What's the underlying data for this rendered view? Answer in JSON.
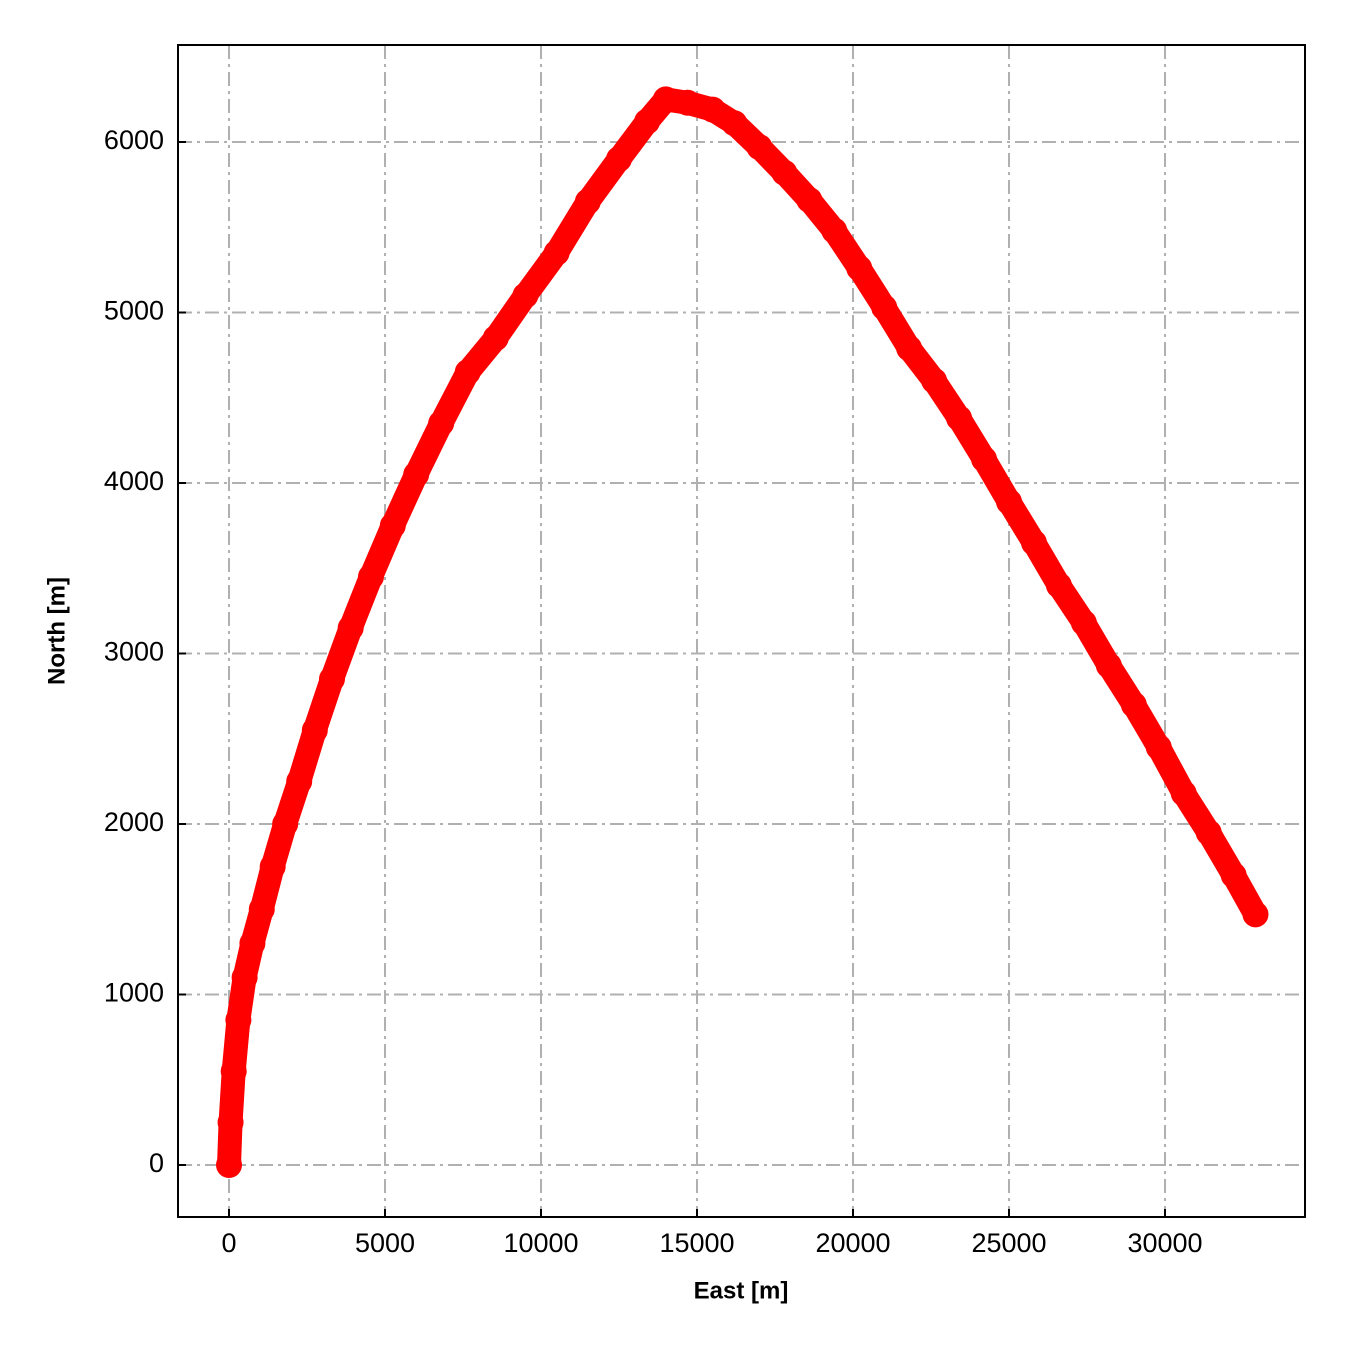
{
  "chart_data": {
    "type": "scatter",
    "xlabel": "East [m]",
    "ylabel": "North [m]",
    "xlim": [
      -1635,
      34487
    ],
    "ylim": [
      -305,
      6569
    ],
    "xticks": [
      0,
      5000,
      10000,
      15000,
      20000,
      25000,
      30000
    ],
    "yticks": [
      0,
      1000,
      2000,
      3000,
      4000,
      5000,
      6000
    ],
    "grid": true,
    "color": "#ff0000",
    "x": [
      0,
      50,
      150,
      300,
      500,
      750,
      1050,
      1400,
      1800,
      2250,
      2750,
      3300,
      3900,
      4550,
      5250,
      6000,
      6800,
      7650,
      8550,
      9500,
      10500,
      11500,
      12500,
      13400,
      14000,
      14700,
      15500,
      16200,
      17000,
      17800,
      18600,
      19400,
      20200,
      21000,
      21800,
      22600,
      23400,
      24200,
      25000,
      25800,
      26600,
      27400,
      28200,
      29000,
      29800,
      30600,
      31400,
      32200,
      32900
    ],
    "values": [
      0,
      250,
      550,
      850,
      1100,
      1300,
      1500,
      1750,
      2000,
      2250,
      2550,
      2850,
      3150,
      3450,
      3750,
      4050,
      4350,
      4650,
      4850,
      5100,
      5350,
      5650,
      5900,
      6120,
      6250,
      6230,
      6190,
      6110,
      5970,
      5820,
      5660,
      5480,
      5260,
      5030,
      4790,
      4600,
      4380,
      4140,
      3890,
      3650,
      3400,
      3180,
      2930,
      2700,
      2450,
      2180,
      1950,
      1700,
      1470
    ]
  }
}
